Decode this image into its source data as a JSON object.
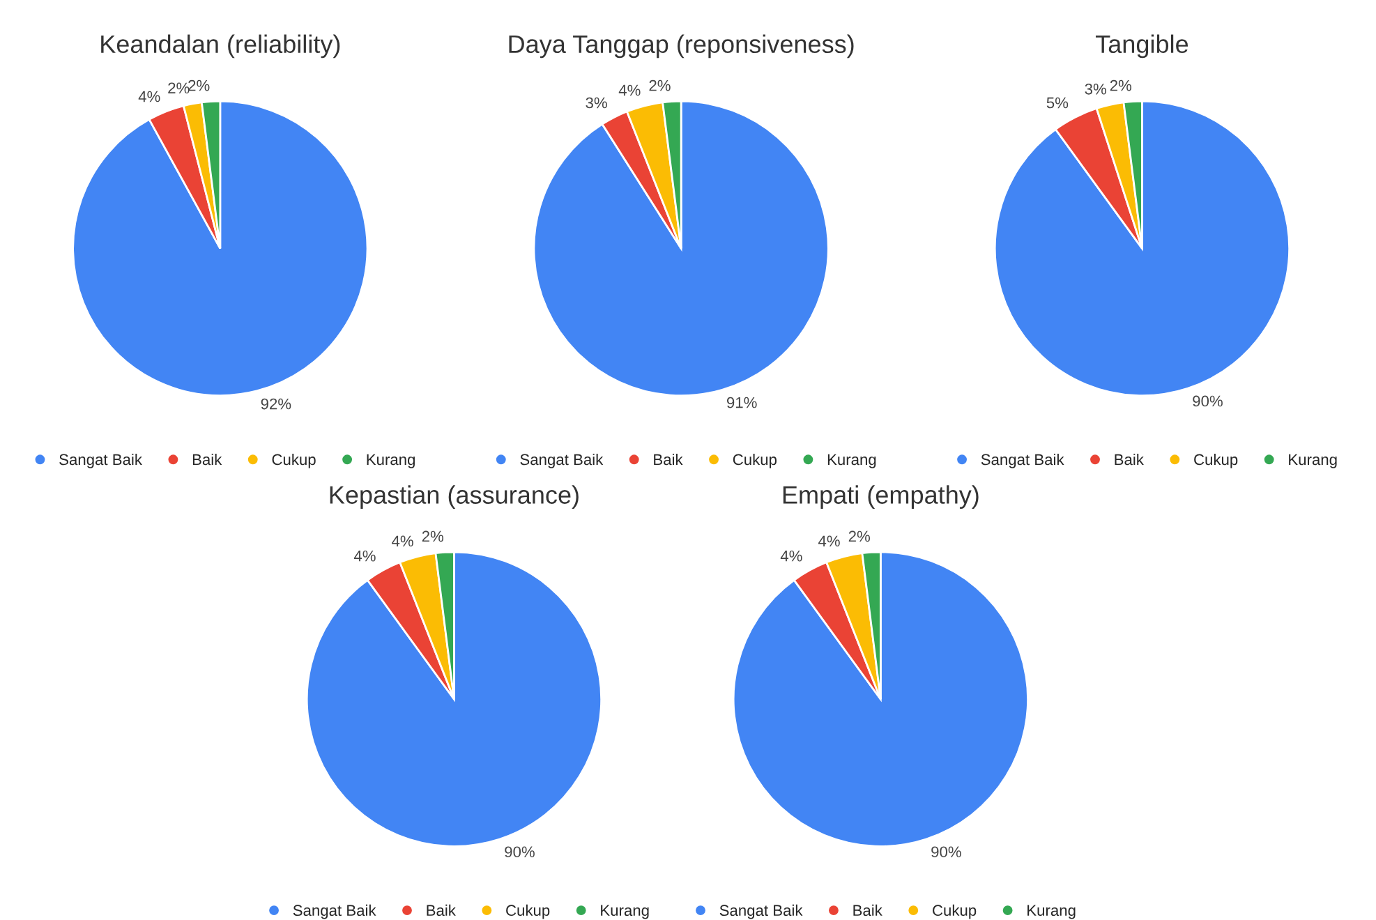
{
  "chart_data": [
    {
      "type": "pie",
      "title": "Keandalan (reliability)",
      "categories": [
        "Sangat Baik",
        "Baik",
        "Cukup",
        "Kurang"
      ],
      "values": [
        92,
        4,
        2,
        2
      ],
      "value_labels": [
        "92%",
        "4%",
        "2%",
        "2%"
      ],
      "colors": [
        "#4285f4",
        "#ea4335",
        "#fbbc04",
        "#34a853"
      ],
      "legend": "bottom"
    },
    {
      "type": "pie",
      "title": "Daya Tanggap (reponsiveness)",
      "categories": [
        "Sangat Baik",
        "Baik",
        "Cukup",
        "Kurang"
      ],
      "values": [
        91,
        3,
        4,
        2
      ],
      "value_labels": [
        "91%",
        "3%",
        "4%",
        "2%"
      ],
      "colors": [
        "#4285f4",
        "#ea4335",
        "#fbbc04",
        "#34a853"
      ],
      "legend": "bottom"
    },
    {
      "type": "pie",
      "title": "Tangible",
      "categories": [
        "Sangat Baik",
        "Baik",
        "Cukup",
        "Kurang"
      ],
      "values": [
        90,
        5,
        3,
        2
      ],
      "value_labels": [
        "90%",
        "5%",
        "3%",
        "2%"
      ],
      "colors": [
        "#4285f4",
        "#ea4335",
        "#fbbc04",
        "#34a853"
      ],
      "legend": "bottom"
    },
    {
      "type": "pie",
      "title": "Kepastian (assurance)",
      "categories": [
        "Sangat Baik",
        "Baik",
        "Cukup",
        "Kurang"
      ],
      "values": [
        90,
        4,
        4,
        2
      ],
      "value_labels": [
        "90%",
        "4%",
        "4%",
        "2%"
      ],
      "colors": [
        "#4285f4",
        "#ea4335",
        "#fbbc04",
        "#34a853"
      ],
      "legend": "bottom"
    },
    {
      "type": "pie",
      "title": "Empati (empathy)",
      "categories": [
        "Sangat Baik",
        "Baik",
        "Cukup",
        "Kurang"
      ],
      "values": [
        90,
        4,
        4,
        2
      ],
      "value_labels": [
        "90%",
        "4%",
        "4%",
        "2%"
      ],
      "colors": [
        "#4285f4",
        "#ea4335",
        "#fbbc04",
        "#34a853"
      ],
      "legend": "bottom"
    }
  ]
}
